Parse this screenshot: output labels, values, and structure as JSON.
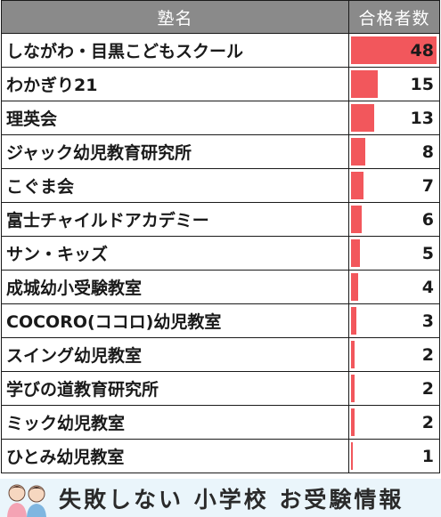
{
  "table": {
    "headers": {
      "name": "塾名",
      "count": "合格者数"
    },
    "max_value": 48,
    "rows": [
      {
        "name": "しながわ・目黒こどもスクール",
        "value": 48
      },
      {
        "name": "わかぎり21",
        "value": 15
      },
      {
        "name": "理英会",
        "value": 13
      },
      {
        "name": "ジャック幼児教育研究所",
        "value": 8
      },
      {
        "name": "こぐま会",
        "value": 7
      },
      {
        "name": "富士チャイルドアカデミー",
        "value": 6
      },
      {
        "name": "サン・キッズ",
        "value": 5
      },
      {
        "name": "成城幼小受験教室",
        "value": 4
      },
      {
        "name": "COCORO(ココロ)幼児教室",
        "value": 3
      },
      {
        "name": "スイング幼児教室",
        "value": 2
      },
      {
        "name": "学びの道教育研究所",
        "value": 2
      },
      {
        "name": "ミック幼児教室",
        "value": 2
      },
      {
        "name": "ひとみ幼児教室",
        "value": 1
      }
    ]
  },
  "colors": {
    "header_bg": "#8a8a8a",
    "bar": "#f2575c",
    "footer_bg": "#eaf5fb"
  },
  "footer": {
    "text": "失敗しない 小学校 お受験情報",
    "illustration": "two-children-illustration"
  }
}
